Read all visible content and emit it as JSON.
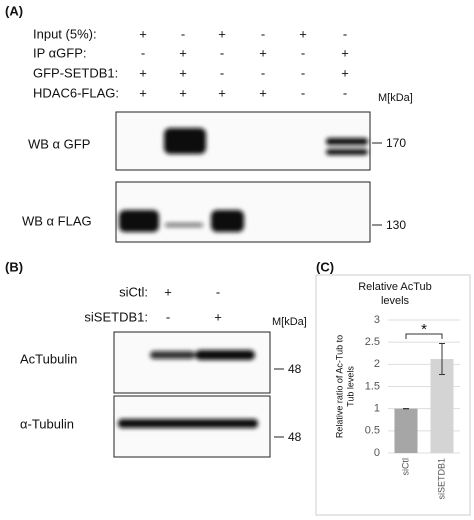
{
  "panel_a": {
    "label": "(A)",
    "conditions": [
      {
        "name": "Input (5%):",
        "signs": [
          "+",
          "-",
          "+",
          "-",
          "+",
          "-"
        ]
      },
      {
        "name": "IP αGFP:",
        "signs": [
          "-",
          "+",
          "-",
          "+",
          "-",
          "+"
        ]
      },
      {
        "name": "GFP-SETDB1:",
        "signs": [
          "+",
          "+",
          "-",
          "-",
          "-",
          "+"
        ]
      },
      {
        "name": "HDAC6-FLAG:",
        "signs": [
          "+",
          "+",
          "+",
          "+",
          "-",
          "-"
        ]
      }
    ],
    "marker_header": "M[kDa]",
    "blots": [
      {
        "label": "WB α GFP",
        "marker": "170"
      },
      {
        "label": "WB α FLAG",
        "marker": "130"
      }
    ]
  },
  "panel_b": {
    "label": "(B)",
    "conditions": [
      {
        "name": "siCtl:",
        "signs": [
          "+",
          "-"
        ]
      },
      {
        "name": "siSETDB1:",
        "signs": [
          "-",
          "+"
        ]
      }
    ],
    "marker_header": "M[kDa]",
    "blots": [
      {
        "label": "AcTubulin",
        "marker": "48"
      },
      {
        "label": "α-Tubulin",
        "marker": "48"
      }
    ]
  },
  "chart_data": {
    "type": "bar",
    "panel_label": "(C)",
    "title": [
      "Relative AcTub",
      "levels"
    ],
    "ylabel": [
      "Relative ratio of Ac-Tub to",
      "Tub levels"
    ],
    "categories": [
      "siCtl",
      "siSETDB1"
    ],
    "values": [
      1,
      2.12
    ],
    "errors": [
      0,
      0.35
    ],
    "colors": [
      "#a6a6a6",
      "#d4d4d4"
    ],
    "ylim": [
      0,
      3
    ],
    "yticks": [
      0,
      0.5,
      1,
      1.5,
      2,
      2.5,
      3
    ],
    "grid": true,
    "annotations": [
      "*"
    ]
  }
}
